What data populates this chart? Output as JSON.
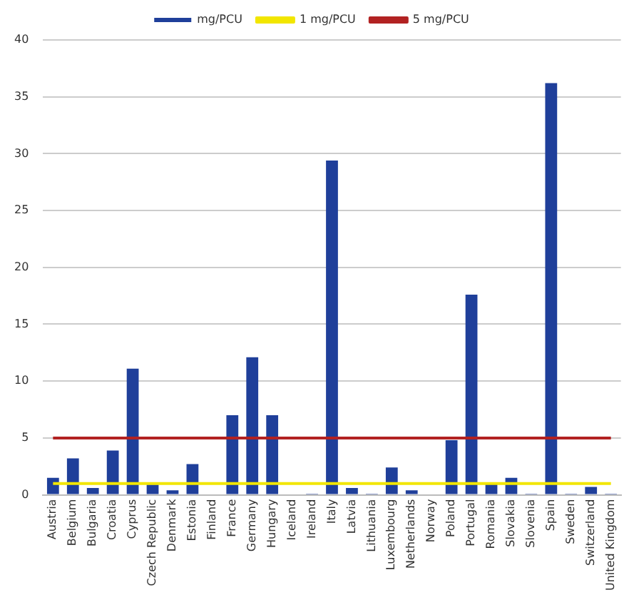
{
  "chart_data": {
    "type": "bar",
    "categories": [
      "Austria",
      "Belgium",
      "Bulgaria",
      "Croatia",
      "Cyprus",
      "Czech Republic",
      "Denmark",
      "Estonia",
      "Finland",
      "France",
      "Germany",
      "Hungary",
      "Iceland",
      "Ireland",
      "Italy",
      "Latvia",
      "Lithuania",
      "Luxembourg",
      "Netherlands",
      "Norway",
      "Poland",
      "Portugal",
      "Romania",
      "Slovakia",
      "Slovenia",
      "Spain",
      "Sweden",
      "Switzerland",
      "United Kingdom"
    ],
    "series": [
      {
        "name": "mg/PCU",
        "color": "#1f3f9a",
        "values": [
          1.5,
          3.2,
          0.6,
          3.9,
          11.1,
          0.9,
          0.4,
          2.7,
          0,
          7.0,
          12.1,
          7.0,
          0,
          0.1,
          29.4,
          0.6,
          0.1,
          2.4,
          0.4,
          0,
          4.8,
          17.6,
          1.0,
          1.5,
          0.1,
          36.2,
          0.1,
          0.7,
          0.1
        ]
      },
      {
        "name": "1 mg/PCU",
        "type": "line",
        "color": "#f2e600",
        "values": [
          1,
          1,
          1,
          1,
          1,
          1,
          1,
          1,
          1,
          1,
          1,
          1,
          1,
          1,
          1,
          1,
          1,
          1,
          1,
          1,
          1,
          1,
          1,
          1,
          1,
          1,
          1,
          1,
          1
        ]
      },
      {
        "name": "5 mg/PCU",
        "type": "line",
        "color": "#b22222",
        "values": [
          5,
          5,
          5,
          5,
          5,
          5,
          5,
          5,
          5,
          5,
          5,
          5,
          5,
          5,
          5,
          5,
          5,
          5,
          5,
          5,
          5,
          5,
          5,
          5,
          5,
          5,
          5,
          5,
          5
        ]
      }
    ],
    "ylim": [
      0,
      40
    ],
    "yticks": [
      0,
      5,
      10,
      15,
      20,
      25,
      30,
      35,
      40
    ],
    "grid": "y",
    "legend": "top",
    "marker": "none"
  }
}
